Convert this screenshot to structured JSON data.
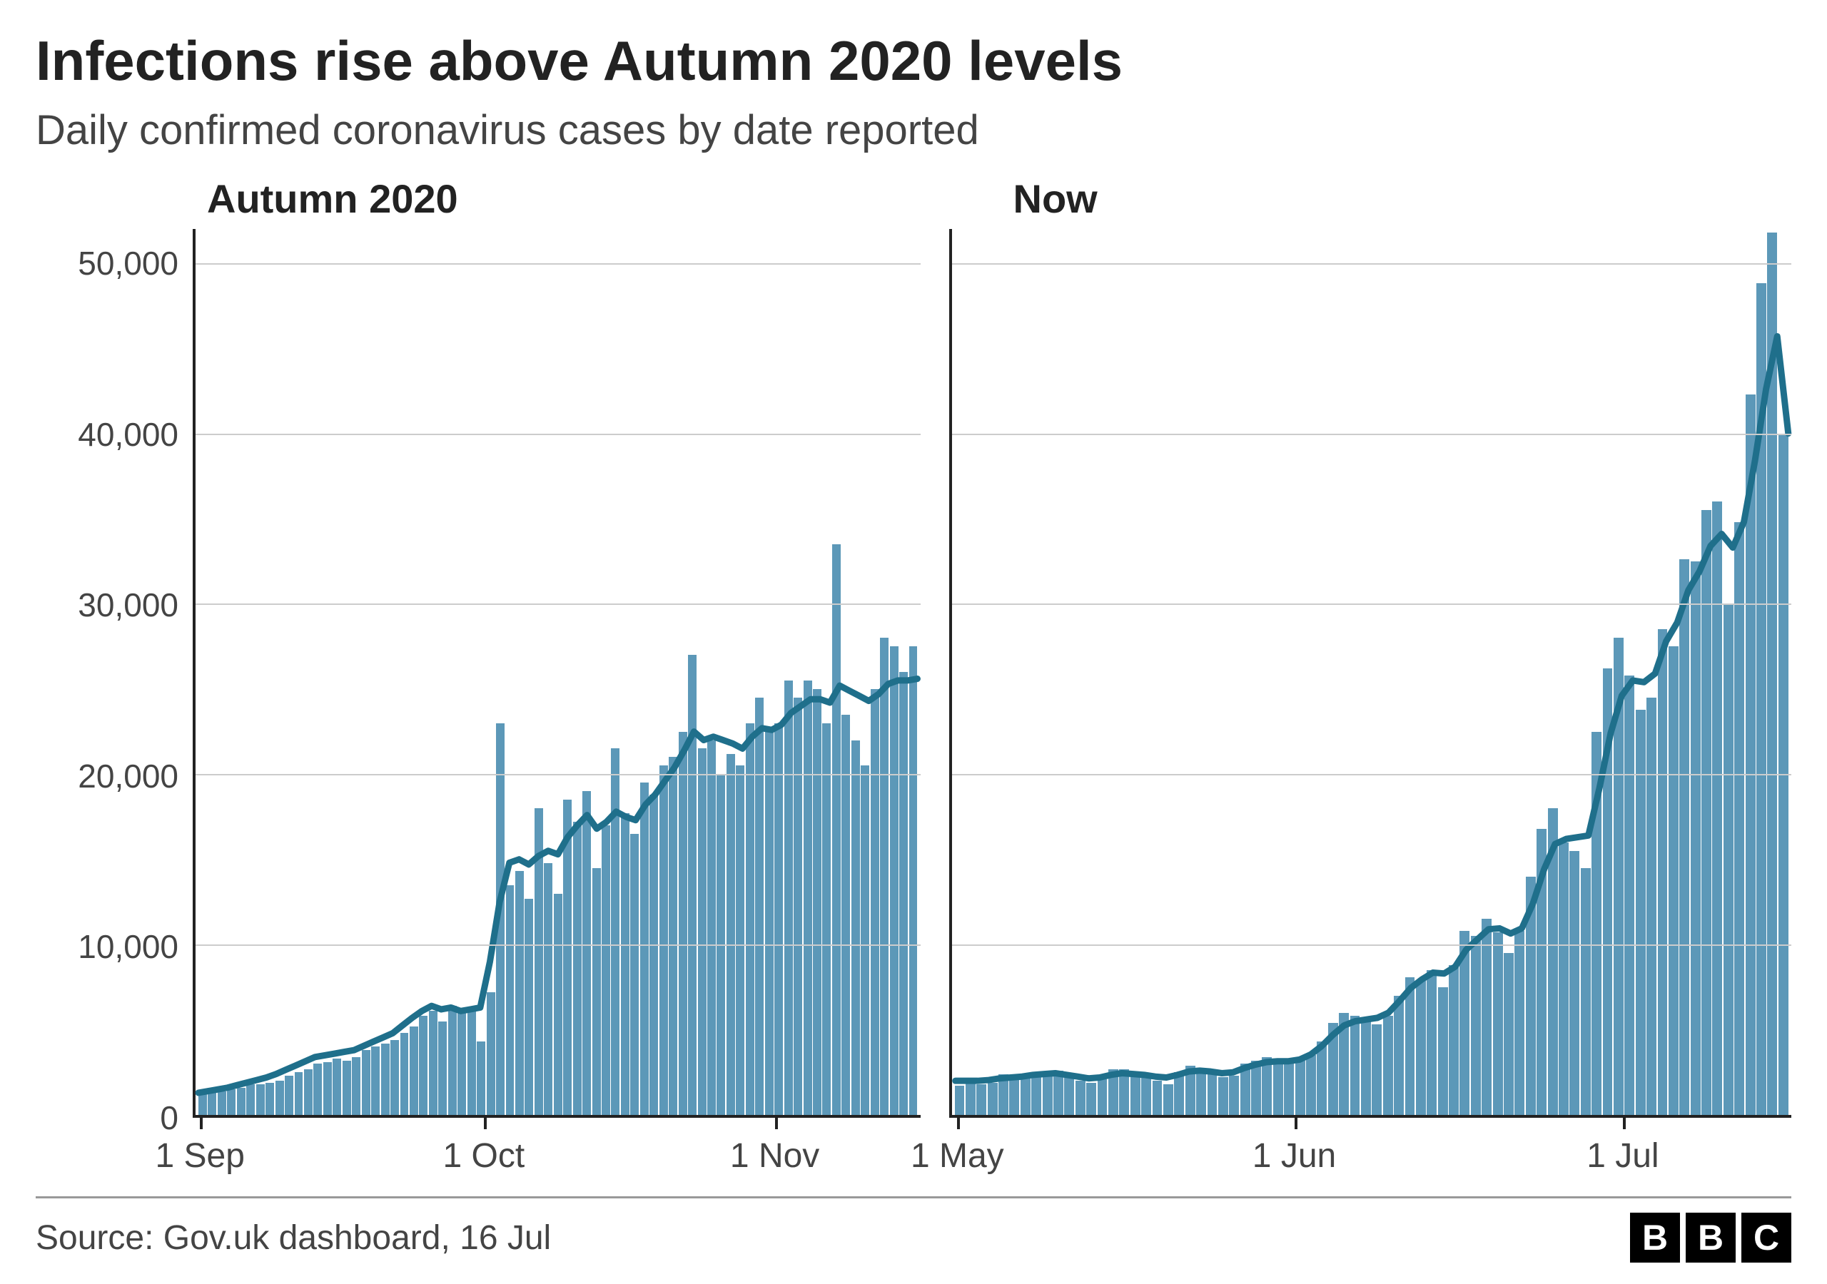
{
  "title": "Infections rise above Autumn 2020 levels",
  "subtitle": "Daily confirmed coronavirus cases by date reported",
  "source": "Source: Gov.uk dashboard, 16 Jul",
  "logo_letters": [
    "B",
    "B",
    "C"
  ],
  "colors": {
    "bar": "#5c98b8",
    "trend": "#1f6f8b",
    "grid": "#cccccc",
    "axis": "#222222",
    "text": "#333333",
    "background": "#ffffff"
  },
  "y_axis": {
    "min": 0,
    "max": 52000,
    "ticks": [
      0,
      10000,
      20000,
      30000,
      40000,
      50000
    ],
    "tick_labels": [
      "0",
      "10,000",
      "20,000",
      "30,000",
      "40,000",
      "50,000"
    ],
    "fontsize": 46
  },
  "panels": [
    {
      "label": "Autumn 2020",
      "x_ticks": [
        {
          "pos_pct": 1,
          "label": "1 Sep"
        },
        {
          "pos_pct": 40,
          "label": "1 Oct"
        },
        {
          "pos_pct": 80,
          "label": "1 Nov"
        }
      ],
      "bars": [
        1200,
        1300,
        1400,
        1500,
        1600,
        1800,
        1800,
        1900,
        2000,
        2300,
        2500,
        2700,
        3000,
        3100,
        3300,
        3200,
        3400,
        3800,
        4000,
        4200,
        4400,
        4800,
        5200,
        5800,
        6100,
        5500,
        6400,
        6000,
        6300,
        4300,
        7200,
        23000,
        13500,
        14300,
        12700,
        18000,
        14800,
        13000,
        18500,
        17200,
        19000,
        14500,
        17000,
        21500,
        17700,
        16500,
        19500,
        18800,
        20500,
        21000,
        22500,
        27000,
        21500,
        22000,
        20000,
        21200,
        20500,
        23000,
        24500,
        22500,
        23000,
        25500,
        24500,
        25500,
        25000,
        23000,
        33500,
        23500,
        22000,
        20500,
        25000,
        28000,
        27500,
        26000,
        27500
      ],
      "trend": [
        1300,
        1400,
        1500,
        1600,
        1750,
        1900,
        2050,
        2200,
        2400,
        2650,
        2900,
        3150,
        3400,
        3500,
        3600,
        3700,
        3800,
        4050,
        4300,
        4550,
        4800,
        5250,
        5700,
        6100,
        6400,
        6200,
        6300,
        6100,
        6200,
        6300,
        9000,
        12500,
        14800,
        15000,
        14700,
        15200,
        15500,
        15300,
        16300,
        17000,
        17600,
        16800,
        17200,
        17800,
        17500,
        17300,
        18200,
        18800,
        19600,
        20400,
        21400,
        22500,
        22000,
        22200,
        22000,
        21800,
        21500,
        22200,
        22700,
        22600,
        22900,
        23600,
        24000,
        24400,
        24400,
        24200,
        25200,
        24900,
        24600,
        24300,
        24700,
        25300,
        25500,
        25500,
        25600
      ]
    },
    {
      "label": "Now",
      "x_ticks": [
        {
          "pos_pct": 1,
          "label": "1 May"
        },
        {
          "pos_pct": 41,
          "label": "1 Jun"
        },
        {
          "pos_pct": 80,
          "label": "1 Jul"
        }
      ],
      "bars": [
        1700,
        1900,
        1800,
        1900,
        2400,
        2300,
        2200,
        2500,
        2400,
        2600,
        2300,
        2000,
        1900,
        2100,
        2700,
        2700,
        2400,
        2200,
        2000,
        1800,
        2500,
        2900,
        2700,
        2400,
        2200,
        2300,
        3000,
        3200,
        3400,
        3300,
        3000,
        3200,
        3500,
        4300,
        5400,
        6000,
        5800,
        5500,
        5300,
        5800,
        7000,
        8100,
        7900,
        8500,
        7500,
        8800,
        10800,
        10500,
        11500,
        10700,
        9500,
        10800,
        14000,
        16800,
        18000,
        16000,
        15500,
        14500,
        22500,
        26200,
        28000,
        25800,
        23800,
        24500,
        28500,
        27500,
        32600,
        32500,
        35500,
        36000,
        30000,
        34800,
        42300,
        48800,
        51800,
        40000
      ],
      "trend": [
        2000,
        2000,
        2000,
        2050,
        2150,
        2200,
        2250,
        2350,
        2400,
        2450,
        2350,
        2250,
        2150,
        2200,
        2350,
        2450,
        2400,
        2350,
        2250,
        2200,
        2350,
        2550,
        2600,
        2550,
        2450,
        2500,
        2750,
        2950,
        3100,
        3150,
        3150,
        3250,
        3550,
        4050,
        4700,
        5250,
        5500,
        5600,
        5700,
        6000,
        6700,
        7450,
        7950,
        8350,
        8300,
        8700,
        9700,
        10300,
        10900,
        10950,
        10650,
        10950,
        12400,
        14400,
        15900,
        16200,
        16300,
        16400,
        19200,
        22400,
        24600,
        25500,
        25400,
        25900,
        27800,
        28900,
        30800,
        31900,
        33400,
        34100,
        33300,
        34800,
        38400,
        42600,
        45700,
        40000
      ]
    }
  ],
  "style": {
    "title_fontsize": 78,
    "subtitle_fontsize": 58,
    "panel_label_fontsize": 56,
    "x_label_fontsize": 48,
    "source_fontsize": 48,
    "trend_stroke_width": 9,
    "axis_stroke_width": 4
  }
}
